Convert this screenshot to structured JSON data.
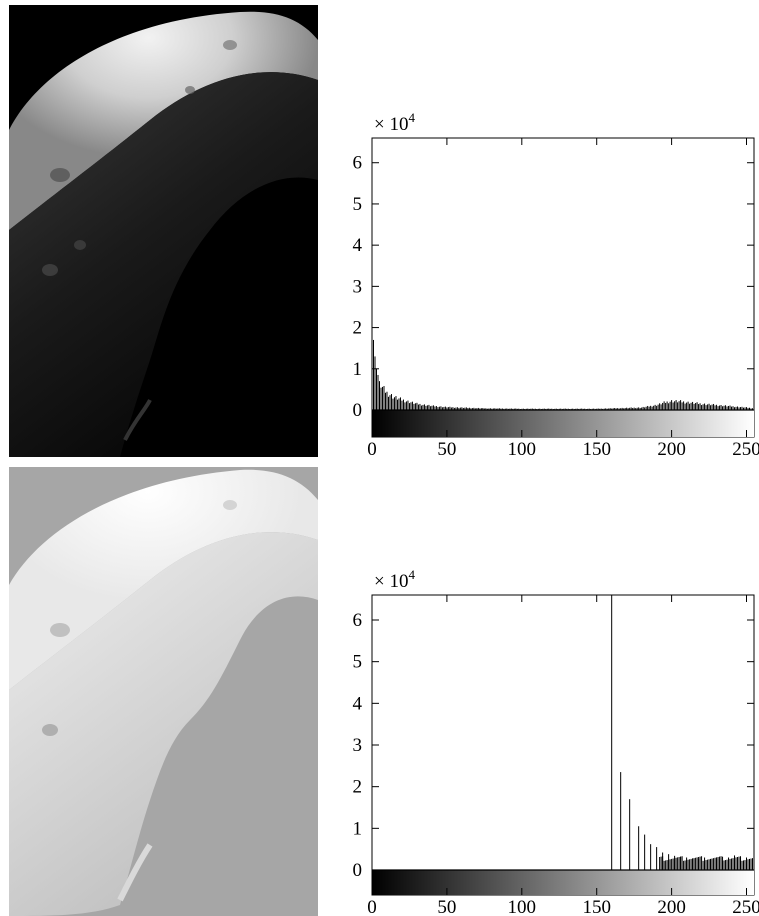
{
  "chart_data": [
    {
      "type": "bar",
      "title": "",
      "xlabel": "",
      "ylabel": "",
      "y_multiplier": "× 10",
      "y_multiplier_exp": "4",
      "xlim": [
        0,
        255
      ],
      "ylim": [
        0,
        6.6
      ],
      "x_ticks": [
        "0",
        "50",
        "100",
        "150",
        "200",
        "250"
      ],
      "y_ticks": [
        "0",
        "1",
        "2",
        "3",
        "4",
        "5",
        "6"
      ],
      "grayscale_bar": true,
      "grid": false,
      "bins": "dense histogram of pixel intensities 0-255",
      "x": [
        0,
        1,
        2,
        3,
        4,
        5,
        6,
        7,
        8,
        10,
        12,
        14,
        16,
        20,
        25,
        30,
        40,
        50,
        75,
        100,
        150,
        180,
        190,
        195,
        200,
        205,
        210,
        220,
        230,
        240,
        250,
        255
      ],
      "values": [
        2.35,
        1.7,
        1.3,
        1.0,
        0.85,
        0.7,
        0.62,
        0.55,
        0.5,
        0.42,
        0.38,
        0.33,
        0.3,
        0.25,
        0.2,
        0.15,
        0.1,
        0.07,
        0.04,
        0.03,
        0.03,
        0.06,
        0.12,
        0.18,
        0.22,
        0.21,
        0.19,
        0.15,
        0.12,
        0.09,
        0.06,
        0.04
      ]
    },
    {
      "type": "bar",
      "title": "",
      "xlabel": "",
      "ylabel": "",
      "y_multiplier": "× 10",
      "y_multiplier_exp": "4",
      "xlim": [
        0,
        255
      ],
      "ylim": [
        0,
        6.6
      ],
      "x_ticks": [
        "0",
        "50",
        "100",
        "150",
        "200",
        "250"
      ],
      "y_ticks": [
        "0",
        "1",
        "2",
        "3",
        "4",
        "5",
        "6"
      ],
      "grayscale_bar": true,
      "grid": false,
      "x": [
        160,
        166,
        172,
        178,
        182,
        186,
        190,
        194,
        198,
        202,
        206,
        210,
        214,
        218,
        222,
        226,
        230,
        234,
        238,
        242,
        246,
        250,
        254
      ],
      "values": [
        6.6,
        2.35,
        1.7,
        1.05,
        0.85,
        0.62,
        0.55,
        0.42,
        0.38,
        0.34,
        0.32,
        0.3,
        0.28,
        0.27,
        0.3,
        0.26,
        0.28,
        0.32,
        0.3,
        0.35,
        0.28,
        0.3,
        0.25
      ]
    }
  ],
  "images": [
    {
      "name": "moon-image-original",
      "tone": "dark",
      "background": "#000000"
    },
    {
      "name": "moon-image-equalized",
      "tone": "light",
      "background": "#a6a6a6"
    }
  ]
}
